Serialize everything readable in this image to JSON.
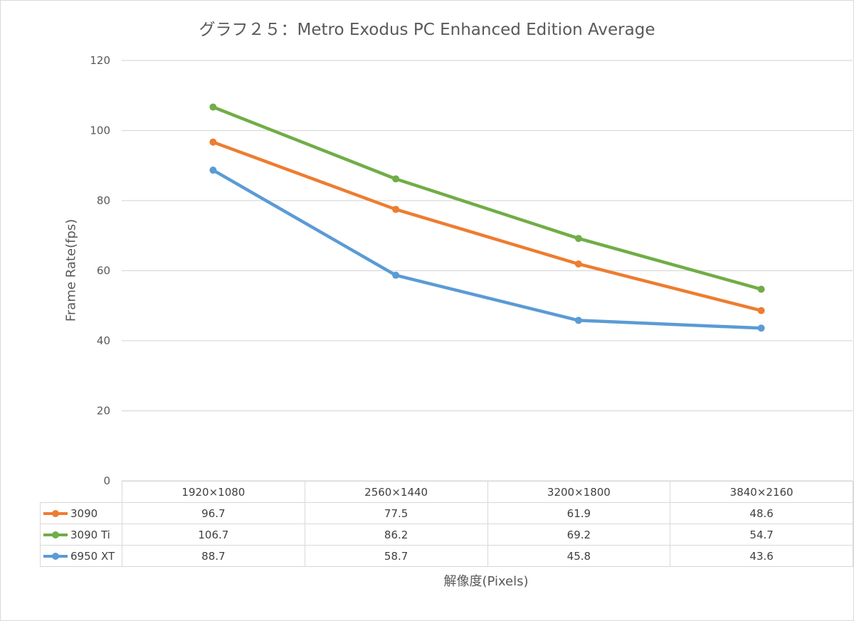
{
  "chart_data": {
    "type": "line",
    "title": "グラフ２５：Metro Exodus PC Enhanced Edition Average",
    "xlabel": "解像度(Pixels)",
    "ylabel": "Frame Rate(fps)",
    "ylim": [
      0,
      120
    ],
    "yticks": [
      0,
      20,
      40,
      60,
      80,
      100,
      120
    ],
    "grid": true,
    "legend_placement": "data table below plot",
    "categories": [
      "1920×1080",
      "2560×1440",
      "3200×1800",
      "3840×2160"
    ],
    "series": [
      {
        "name": "3090",
        "color": "#ed7d31",
        "values": [
          96.7,
          77.5,
          61.9,
          48.6
        ],
        "labels": [
          "96.7",
          "77.5",
          "61.9",
          "48.6"
        ]
      },
      {
        "name": "3090 Ti",
        "color": "#70ad47",
        "values": [
          106.7,
          86.2,
          69.2,
          54.7
        ],
        "labels": [
          "106.7",
          "86.2",
          "69.2",
          "54.7"
        ]
      },
      {
        "name": "6950 XT",
        "color": "#5b9bd5",
        "values": [
          88.7,
          58.7,
          45.8,
          43.6
        ],
        "labels": [
          "88.7",
          "58.7",
          "45.8",
          "43.6"
        ]
      }
    ]
  }
}
